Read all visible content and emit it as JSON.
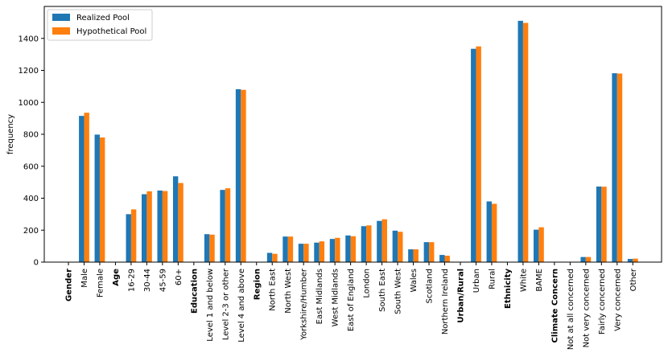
{
  "chart_data": {
    "type": "bar",
    "title": "",
    "xlabel": "",
    "ylabel": "frequency",
    "ylim": [
      0,
      1600
    ],
    "yticks": [
      0,
      200,
      400,
      600,
      800,
      1000,
      1200,
      1400
    ],
    "grid": false,
    "legend_position": "top-left",
    "categories": [
      "Gender",
      "Male",
      "Female",
      "Age",
      "16-29",
      "30-44",
      "45-59",
      "60+",
      "Education",
      "Level 1 and below",
      "Level 2-3 or other",
      "Level 4 and above",
      "Region",
      "North East",
      "North West",
      "Yorkshire/Humber",
      "East Midlands",
      "West Midlands",
      "East of England",
      "London",
      "South East",
      "South West",
      "Wales",
      "Scotland",
      "Northern Ireland",
      "Urban/Rural",
      "Urban",
      "Rural",
      "Ethnicity",
      "White",
      "BAME",
      "Climate Concern",
      "Not at all concerned",
      "Not very concerned",
      "Fairly concerned",
      "Very concerned",
      "Other"
    ],
    "group_headers": [
      "Gender",
      "Age",
      "Education",
      "Region",
      "Urban/Rural",
      "Ethnicity",
      "Climate Concern"
    ],
    "series": [
      {
        "name": "Realized Pool",
        "color": "#1f77b4",
        "values": [
          null,
          915,
          798,
          null,
          300,
          425,
          448,
          537,
          null,
          175,
          452,
          1082,
          null,
          58,
          160,
          115,
          122,
          145,
          167,
          225,
          258,
          197,
          80,
          125,
          45,
          null,
          1335,
          380,
          null,
          1510,
          203,
          null,
          2,
          32,
          473,
          1182,
          20
        ]
      },
      {
        "name": "Hypothetical Pool",
        "color": "#ff7f0e",
        "values": [
          null,
          935,
          780,
          null,
          330,
          443,
          445,
          495,
          null,
          172,
          462,
          1078,
          null,
          52,
          160,
          115,
          130,
          152,
          162,
          230,
          268,
          190,
          80,
          125,
          40,
          null,
          1350,
          365,
          null,
          1497,
          218,
          null,
          2,
          32,
          472,
          1180,
          22
        ]
      }
    ]
  }
}
